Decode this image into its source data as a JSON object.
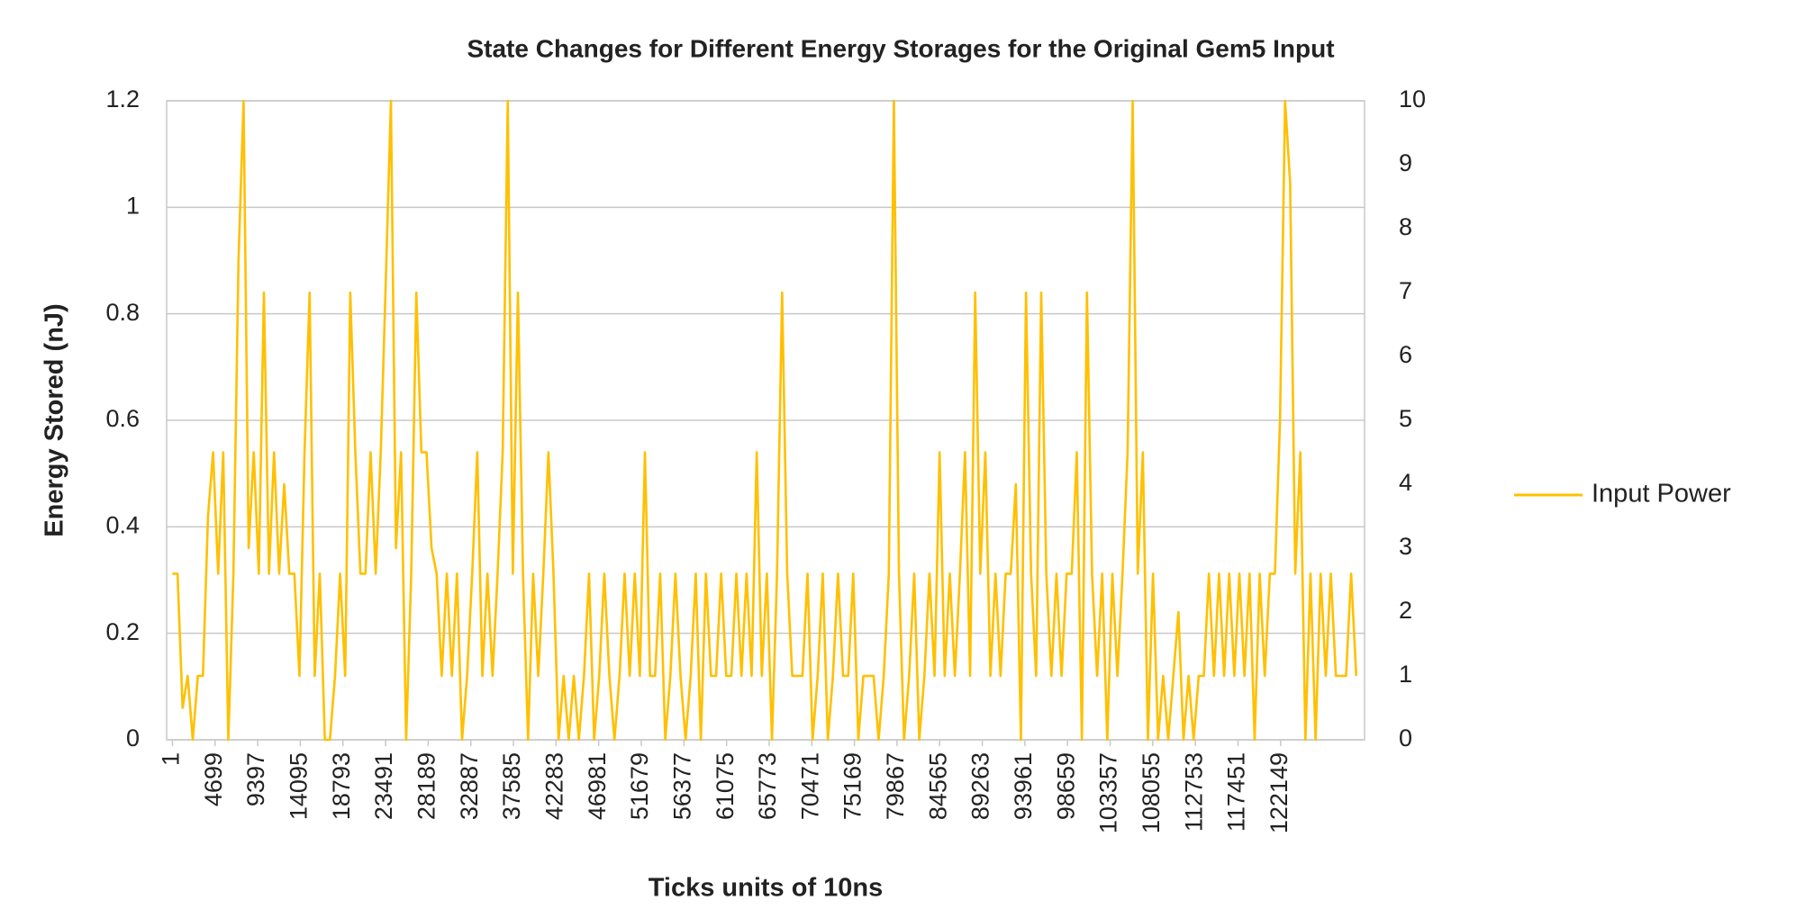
{
  "chart_data": {
    "type": "line",
    "title": "State Changes for Different Energy Storages for the Original Gem5 Input",
    "x_label": "Ticks units of 10ns",
    "y_label": "Energy Stored (nJ)",
    "legend": "right",
    "grid": true,
    "xlim": [
      -640,
      131400
    ],
    "xticks": [
      1,
      4699,
      9397,
      14095,
      18793,
      23491,
      28189,
      32887,
      37585,
      42283,
      46981,
      51679,
      56377,
      61075,
      65773,
      70471,
      75169,
      79867,
      84565,
      89263,
      93961,
      98659,
      103357,
      108055,
      112753,
      117451,
      122149
    ],
    "ylim": [
      0,
      1.2
    ],
    "yticks": [
      0,
      0.2,
      0.4,
      0.6,
      0.8,
      1,
      1.2
    ],
    "y2lim": [
      0,
      10
    ],
    "y2ticks": [
      0,
      1,
      2,
      3,
      4,
      5,
      6,
      7,
      8,
      9,
      10
    ],
    "x": [
      1,
      561,
      1121,
      1681,
      2241,
      2801,
      3361,
      3921,
      4481,
      5041,
      5601,
      6161,
      6721,
      7281,
      7841,
      8401,
      8961,
      9521,
      10081,
      10641,
      11201,
      11761,
      12321,
      12881,
      13441,
      14001,
      14561,
      15121,
      15681,
      16241,
      16801,
      17361,
      17921,
      18481,
      19041,
      19601,
      20161,
      20721,
      21281,
      21841,
      22401,
      22961,
      23521,
      24081,
      24641,
      25201,
      25761,
      26321,
      26881,
      27441,
      28001,
      28561,
      29121,
      29681,
      30241,
      30801,
      31361,
      31921,
      32481,
      33041,
      33601,
      34161,
      34721,
      35281,
      35841,
      36401,
      36961,
      37521,
      38081,
      38641,
      39201,
      39761,
      40321,
      40881,
      41441,
      42001,
      42561,
      43121,
      43681,
      44241,
      44801,
      45361,
      45921,
      46481,
      47041,
      47601,
      48161,
      48721,
      49281,
      49841,
      50401,
      50961,
      51521,
      52081,
      52641,
      53201,
      53761,
      54321,
      54881,
      55441,
      56001,
      56561,
      57121,
      57681,
      58241,
      58801,
      59361,
      59921,
      60481,
      61041,
      61601,
      62161,
      62721,
      63281,
      63841,
      64401,
      64961,
      65521,
      66081,
      66641,
      67201,
      67761,
      68321,
      68881,
      69441,
      70001,
      70561,
      71121,
      71681,
      72241,
      72801,
      73361,
      73921,
      74481,
      75041,
      75601,
      76161,
      76721,
      77281,
      77841,
      78401,
      78961,
      79521,
      80081,
      80641,
      81201,
      81761,
      82321,
      82881,
      83441,
      84001,
      84561,
      85121,
      85681,
      86241,
      86801,
      87361,
      87921,
      88481,
      89041,
      89601,
      90161,
      90721,
      91281,
      91841,
      92401,
      92961,
      93521,
      94081,
      94641,
      95201,
      95761,
      96321,
      96881,
      97441,
      98001,
      98561,
      99121,
      99681,
      100241,
      100801,
      101361,
      101921,
      102481,
      103041,
      103601,
      104161,
      104721,
      105281,
      105841,
      106401,
      106961,
      107521,
      108081,
      108641,
      109201,
      109761,
      110321,
      110881,
      111441,
      112001,
      112561,
      113121,
      113681,
      114241,
      114801,
      115361,
      115921,
      116481,
      117041,
      117601,
      118161,
      118721,
      119281,
      119841,
      120401,
      120961,
      121521,
      122081,
      122641,
      123201,
      123761,
      124321,
      124881,
      125441,
      126001,
      126561,
      127121,
      127681,
      128241,
      128801,
      129361,
      129921,
      130481
    ],
    "series": [
      {
        "name": "Input Power",
        "color": "#ffc000",
        "axis": "y2",
        "values": [
          2.6,
          2.6,
          0.5,
          1,
          0,
          1,
          1,
          3.5,
          4.5,
          2.6,
          4.5,
          0,
          2.6,
          7.5,
          10,
          3,
          4.5,
          2.6,
          7,
          2.6,
          4.5,
          2.6,
          4,
          2.6,
          2.6,
          1,
          4.5,
          7,
          1,
          2.6,
          0,
          0,
          1,
          2.6,
          1,
          7,
          4.5,
          2.6,
          2.6,
          4.5,
          2.6,
          4.5,
          7.2,
          10,
          3,
          4.5,
          0,
          2.6,
          7,
          4.5,
          4.5,
          3,
          2.6,
          1,
          2.6,
          1,
          2.6,
          0,
          1,
          2.6,
          4.5,
          1,
          2.6,
          1,
          2.6,
          4.5,
          10,
          2.6,
          7,
          2.6,
          0,
          2.6,
          1,
          2.6,
          4.5,
          2.6,
          0,
          1,
          0,
          1,
          0,
          1,
          2.6,
          0,
          1,
          2.6,
          1,
          0,
          1,
          2.6,
          1,
          2.6,
          1,
          4.5,
          1,
          1,
          2.6,
          0,
          1,
          2.6,
          1,
          0,
          1,
          2.6,
          0,
          2.6,
          1,
          1,
          2.6,
          1,
          1,
          2.6,
          1,
          2.6,
          1,
          4.5,
          1,
          2.6,
          0,
          2.6,
          7,
          2.6,
          1,
          1,
          1,
          2.6,
          0,
          1,
          2.6,
          0,
          1,
          2.6,
          1,
          1,
          2.6,
          0,
          1,
          1,
          1,
          0,
          1,
          2.6,
          10,
          2.6,
          0,
          1,
          2.6,
          0,
          1,
          2.6,
          1,
          4.5,
          1,
          2.6,
          1,
          2.6,
          4.5,
          1,
          7,
          2.6,
          4.5,
          1,
          2.6,
          1,
          2.6,
          2.6,
          4,
          0,
          7,
          2.6,
          1,
          7,
          2.6,
          1,
          2.6,
          1,
          2.6,
          2.6,
          4.5,
          0,
          7,
          2.6,
          1,
          2.6,
          0,
          2.6,
          1,
          2.6,
          4.5,
          10,
          2.6,
          4.5,
          0,
          2.6,
          0,
          1,
          0,
          1,
          2,
          0,
          1,
          0,
          1,
          1,
          2.6,
          1,
          2.6,
          1,
          2.6,
          1,
          2.6,
          1,
          2.6,
          0,
          2.6,
          1,
          2.6,
          2.6,
          5,
          10,
          8.7,
          2.6,
          4.5,
          0,
          2.6,
          0,
          2.6,
          1,
          2.6,
          1,
          1,
          1,
          2.6,
          1
        ]
      }
    ]
  }
}
